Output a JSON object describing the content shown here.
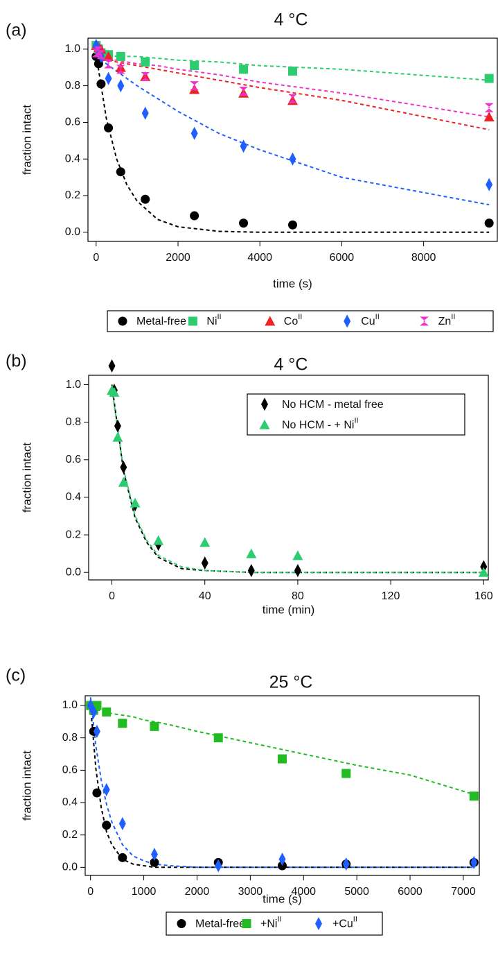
{
  "chart_data": [
    {
      "type": "scatter",
      "panel_label": "(a)",
      "title": "4 °C",
      "x_label": "time (s)",
      "y_label": "fraction intact",
      "xlim": [
        -200,
        9800
      ],
      "ylim": [
        -0.05,
        1.06
      ],
      "xticks": [
        0,
        2000,
        4000,
        6000,
        8000
      ],
      "yticks": [
        {
          "value": 0,
          "label": "0.0"
        },
        {
          "value": 0.2,
          "label": "0.2"
        },
        {
          "value": 0.4,
          "label": "0.4"
        },
        {
          "value": 0.6,
          "label": "0.6"
        },
        {
          "value": 0.8,
          "label": "0.8"
        },
        {
          "value": 1,
          "label": "1.0"
        }
      ],
      "legend": "below",
      "x": [
        0,
        60,
        120,
        300,
        600,
        1200,
        2400,
        3600,
        4800,
        9600
      ],
      "fit_x": [
        0,
        250,
        500,
        750,
        1000,
        1500,
        2000,
        3000,
        4000,
        6000,
        9600
      ],
      "series": [
        {
          "name": "Metal-free",
          "color": "#000000",
          "marker": "circle",
          "values": [
            0.96,
            0.92,
            0.81,
            0.57,
            0.33,
            0.18,
            0.09,
            0.05,
            0.04,
            0.05
          ],
          "fit": [
            0.97,
            0.62,
            0.4,
            0.26,
            0.17,
            0.07,
            0.03,
            0.005,
            0,
            0,
            0
          ]
        },
        {
          "name": "Ni",
          "name_sup": "II",
          "color": "#2ecc71",
          "marker": "square",
          "values": [
            1.02,
            1.0,
            0.98,
            0.97,
            0.96,
            0.93,
            0.91,
            0.89,
            0.88,
            0.84
          ],
          "fit": [
            0.97,
            0.97,
            0.96,
            0.96,
            0.96,
            0.95,
            0.94,
            0.93,
            0.91,
            0.89,
            0.83
          ]
        },
        {
          "name": "Co",
          "name_sup": "II",
          "color": "#ee2222",
          "marker": "triangle",
          "values": [
            1.02,
            1.01,
            1.0,
            0.96,
            0.9,
            0.85,
            0.78,
            0.76,
            0.72,
            0.63
          ],
          "fit": [
            0.95,
            0.94,
            0.93,
            0.92,
            0.91,
            0.89,
            0.87,
            0.83,
            0.79,
            0.72,
            0.56
          ]
        },
        {
          "name": "Cu",
          "name_sup": "II",
          "color": "#1f5fff",
          "marker": "diamond",
          "values": [
            1.02,
            0.98,
            0.96,
            0.84,
            0.8,
            0.65,
            0.54,
            0.47,
            0.4,
            0.26
          ],
          "fit": [
            0.97,
            0.92,
            0.88,
            0.84,
            0.8,
            0.73,
            0.66,
            0.54,
            0.45,
            0.3,
            0.15
          ]
        },
        {
          "name": "Zn",
          "name_sup": "II",
          "color": "#ee33cc",
          "marker": "bowtie",
          "values": [
            0.98,
            0.99,
            0.97,
            0.92,
            0.89,
            0.85,
            0.8,
            0.77,
            0.73,
            0.68
          ],
          "fit": [
            0.95,
            0.94,
            0.94,
            0.93,
            0.92,
            0.91,
            0.89,
            0.86,
            0.82,
            0.76,
            0.63
          ]
        }
      ]
    },
    {
      "type": "scatter",
      "panel_label": "(b)",
      "title": "4 °C",
      "x_label": "time (min)",
      "y_label": "fraction intact",
      "xlim": [
        -10,
        162
      ],
      "ylim": [
        -0.04,
        1.05
      ],
      "xticks": [
        0,
        40,
        80,
        120,
        160
      ],
      "yticks": [
        {
          "value": 0,
          "label": "0.0"
        },
        {
          "value": 0.2,
          "label": "0.2"
        },
        {
          "value": 0.4,
          "label": "0.4"
        },
        {
          "value": 0.6,
          "label": "0.6"
        },
        {
          "value": 0.8,
          "label": "0.8"
        },
        {
          "value": 1,
          "label": "1.0"
        }
      ],
      "legend": "upper right",
      "x": [
        0,
        1,
        2.5,
        5,
        10,
        20,
        40,
        60,
        80,
        160
      ],
      "fit_x": [
        0,
        5,
        10,
        15,
        20,
        30,
        40,
        60,
        80,
        120,
        160
      ],
      "series": [
        {
          "name": "No HCM - metal free",
          "color": "#000000",
          "marker": "diamond",
          "values": [
            1.1,
            0.97,
            0.78,
            0.56,
            0.36,
            0.15,
            0.05,
            0.01,
            0.01,
            0.03
          ],
          "fit": [
            1.0,
            0.54,
            0.29,
            0.16,
            0.08,
            0.02,
            0.01,
            0,
            0,
            0,
            0
          ]
        },
        {
          "name": "No HCM - + Ni",
          "name_sup": "II",
          "color": "#2ecc71",
          "marker": "triangle",
          "values": [
            0.97,
            0.96,
            0.72,
            0.48,
            0.37,
            0.17,
            0.16,
            0.1,
            0.09,
            0.0
          ],
          "fit": [
            0.98,
            0.55,
            0.3,
            0.17,
            0.09,
            0.03,
            0.01,
            0,
            0,
            0,
            0
          ]
        }
      ]
    },
    {
      "type": "scatter",
      "panel_label": "(c)",
      "title": "25 °C",
      "x_label": "time (s)",
      "y_label": "fraction intact",
      "xlim": [
        -100,
        7300
      ],
      "ylim": [
        -0.05,
        1.06
      ],
      "xticks": [
        0,
        1000,
        2000,
        3000,
        4000,
        5000,
        6000,
        7000
      ],
      "yticks": [
        {
          "value": 0,
          "label": "0.0"
        },
        {
          "value": 0.2,
          "label": "0.2"
        },
        {
          "value": 0.4,
          "label": "0.4"
        },
        {
          "value": 0.6,
          "label": "0.6"
        },
        {
          "value": 0.8,
          "label": "0.8"
        },
        {
          "value": 1,
          "label": "1.0"
        }
      ],
      "legend": "below",
      "x": [
        0,
        60,
        120,
        300,
        600,
        1200,
        2400,
        3600,
        4800,
        7200
      ],
      "fit_x": [
        0,
        100,
        200,
        300,
        400,
        600,
        800,
        1000,
        1200,
        1500,
        2000,
        3000,
        4000,
        5000,
        6000,
        7200
      ],
      "series": [
        {
          "name": "Metal-free",
          "color": "#000000",
          "marker": "circle",
          "values": [
            1.0,
            0.84,
            0.46,
            0.26,
            0.06,
            0.03,
            0.03,
            0.01,
            0.02,
            0.03
          ],
          "fit": [
            1.0,
            0.61,
            0.37,
            0.22,
            0.14,
            0.05,
            0.02,
            0.01,
            0,
            0,
            0,
            0,
            0,
            0,
            0,
            0
          ]
        },
        {
          "name": "+Ni",
          "name_sup": "II",
          "color": "#22bb22",
          "marker": "square",
          "values": [
            1.0,
            0.97,
            1.0,
            0.96,
            0.89,
            0.87,
            0.8,
            0.67,
            0.58,
            0.44
          ],
          "fit": [
            0.98,
            0.97,
            0.97,
            0.96,
            0.95,
            0.94,
            0.93,
            0.91,
            0.9,
            0.88,
            0.84,
            0.77,
            0.7,
            0.63,
            0.57,
            0.45
          ]
        },
        {
          "name": "+Cu",
          "name_sup": "II",
          "color": "#1f5fff",
          "marker": "diamond",
          "values": [
            1.0,
            0.96,
            0.84,
            0.48,
            0.27,
            0.08,
            0.01,
            0.05,
            0.02,
            0.03
          ],
          "fit": [
            1.05,
            0.75,
            0.54,
            0.39,
            0.28,
            0.14,
            0.07,
            0.04,
            0.02,
            0.01,
            0,
            0,
            0,
            0,
            0,
            0
          ]
        }
      ]
    }
  ]
}
